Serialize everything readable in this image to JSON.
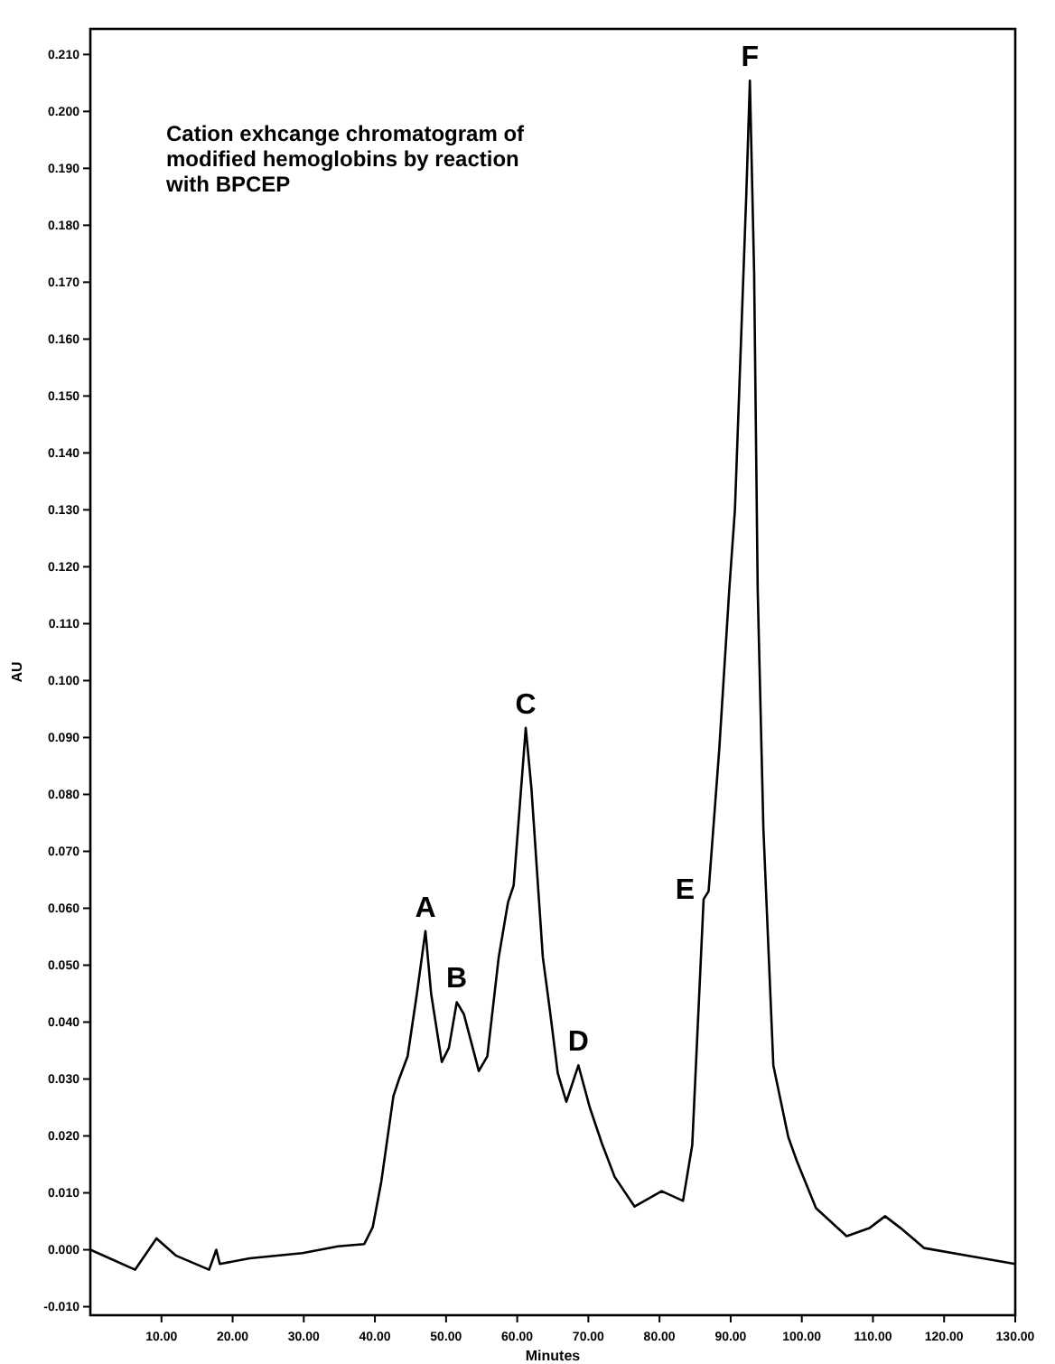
{
  "chart_data": {
    "type": "line",
    "title": "Cation exhcange chromatogram of modified hemoglobins by reaction with BPCEP",
    "xlabel": "Minutes",
    "ylabel": "AU",
    "x": [
      0,
      6.3,
      9.3,
      12,
      16.7,
      17.7,
      18.2,
      22.4,
      29.8,
      34.8,
      38.5,
      39.7,
      40.9,
      42.6,
      43.4,
      44.6,
      45.9,
      47.1,
      47.9,
      49.4,
      50.4,
      51.5,
      52.5,
      54.6,
      55.8,
      57.4,
      58.7,
      59.5,
      61.2,
      62,
      63.6,
      64.6,
      65.7,
      66.9,
      68.6,
      70.2,
      71.9,
      73.7,
      76.5,
      80.3,
      83.3,
      84.6,
      86.2,
      86.9,
      88.4,
      89.8,
      90.6,
      92.2,
      92.7,
      93.3,
      93.8,
      94.6,
      96,
      98.1,
      99.3,
      102,
      106.3,
      109.5,
      111.7,
      113.9,
      117.2,
      123.6,
      130
    ],
    "series": [
      {
        "color": "#000000",
        "values": [
          0,
          -0.0035,
          0.002,
          -0.001,
          -0.0035,
          0,
          -0.0025,
          -0.0015,
          -0.0006,
          0.0006,
          0.001,
          0.004,
          0.012,
          0.027,
          0.03,
          0.034,
          0.045,
          0.056,
          0.045,
          0.033,
          0.0355,
          0.0435,
          0.0414,
          0.0314,
          0.034,
          0.0514,
          0.061,
          0.064,
          0.0917,
          0.081,
          0.0514,
          0.042,
          0.031,
          0.026,
          0.0324,
          0.025,
          0.0187,
          0.0128,
          0.0076,
          0.0103,
          0.0086,
          0.0184,
          0.0616,
          0.063,
          0.088,
          0.1159,
          0.13,
          0.1855,
          0.2054,
          0.1716,
          0.116,
          0.074,
          0.0324,
          0.0198,
          0.0156,
          0.0073,
          0.0024,
          0.0038,
          0.0059,
          0.0038,
          0.0003,
          -0.0011,
          -0.0025
        ]
      }
    ],
    "xlim": [
      0,
      130
    ],
    "ylim": [
      -0.0115,
      0.2145
    ],
    "xticks": [
      {
        "value": 10,
        "label": "10.00"
      },
      {
        "value": 20,
        "label": "20.00"
      },
      {
        "value": 30,
        "label": "30.00"
      },
      {
        "value": 40,
        "label": "40.00"
      },
      {
        "value": 50,
        "label": "50.00"
      },
      {
        "value": 60,
        "label": "60.00"
      },
      {
        "value": 70,
        "label": "70.00"
      },
      {
        "value": 80,
        "label": "80.00"
      },
      {
        "value": 90,
        "label": "90.00"
      },
      {
        "value": 100,
        "label": "100.00"
      },
      {
        "value": 110,
        "label": "110.00"
      },
      {
        "value": 120,
        "label": "120.00"
      },
      {
        "value": 130,
        "label": "130.00"
      }
    ],
    "yticks": [
      {
        "value": -0.01,
        "label": "-0.010"
      },
      {
        "value": 0,
        "label": "0.000"
      },
      {
        "value": 0.01,
        "label": "0.010"
      },
      {
        "value": 0.02,
        "label": "0.020"
      },
      {
        "value": 0.03,
        "label": "0.030"
      },
      {
        "value": 0.04,
        "label": "0.040"
      },
      {
        "value": 0.05,
        "label": "0.050"
      },
      {
        "value": 0.06,
        "label": "0.060"
      },
      {
        "value": 0.07,
        "label": "0.070"
      },
      {
        "value": 0.08,
        "label": "0.080"
      },
      {
        "value": 0.09,
        "label": "0.090"
      },
      {
        "value": 0.1,
        "label": "0.100"
      },
      {
        "value": 0.11,
        "label": "0.110"
      },
      {
        "value": 0.12,
        "label": "0.120"
      },
      {
        "value": 0.13,
        "label": "0.130"
      },
      {
        "value": 0.14,
        "label": "0.140"
      },
      {
        "value": 0.15,
        "label": "0.150"
      },
      {
        "value": 0.16,
        "label": "0.160"
      },
      {
        "value": 0.17,
        "label": "0.170"
      },
      {
        "value": 0.18,
        "label": "0.180"
      },
      {
        "value": 0.19,
        "label": "0.190"
      },
      {
        "value": 0.2,
        "label": "0.200"
      },
      {
        "value": 0.21,
        "label": "0.210"
      }
    ],
    "annotations": [
      {
        "text": "A",
        "x": 47.1,
        "y": 0.056
      },
      {
        "text": "B",
        "x": 51.5,
        "y": 0.0435
      },
      {
        "text": "C",
        "x": 61.2,
        "y": 0.0917
      },
      {
        "text": "D",
        "x": 68.6,
        "y": 0.0324
      },
      {
        "text": "E",
        "x": 86.2,
        "y": 0.0616
      },
      {
        "text": "F",
        "x": 92.7,
        "y": 0.2054
      }
    ],
    "grid": false,
    "marker": "none",
    "line_style": "solid"
  }
}
